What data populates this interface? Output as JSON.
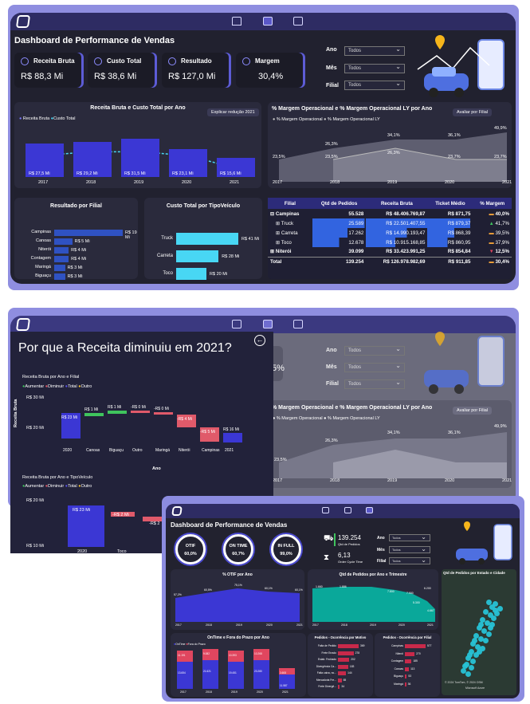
{
  "nav": {
    "items": [
      "home",
      "report",
      "briefcase"
    ]
  },
  "dash1": {
    "title": "Dashboard de Performance de Vendas",
    "kpis": [
      {
        "label": "Receita Bruta",
        "value": "R$ 88,3 Mi"
      },
      {
        "label": "Custo Total",
        "value": "R$ 38,6 Mi"
      },
      {
        "label": "Resultado",
        "value": "R$ 127,0 Mi"
      },
      {
        "label": "Margem",
        "value": "30,4%"
      }
    ],
    "filters": [
      {
        "label": "Ano",
        "value": "Todos"
      },
      {
        "label": "Mês",
        "value": "Todos"
      },
      {
        "label": "Filial",
        "value": "Todos"
      }
    ],
    "chart1": {
      "title": "Receita Bruta e Custo Total por Ano",
      "legend": [
        "Receita Bruta",
        "Custo Total"
      ],
      "button": "Explicar redução 2021",
      "years": [
        "2017",
        "2018",
        "2019",
        "2020",
        "2021"
      ],
      "labels": [
        "R$ 27,5 Mi",
        "R$ 29,2 Mi",
        "R$ 31,5 Mi",
        "R$ 23,1 Mi",
        "R$ 15,6 Mi"
      ],
      "values": [
        27.5,
        29.2,
        31.5,
        23.1,
        15.6
      ]
    },
    "chart2": {
      "title": "% Margem Operacional e % Margem Operacional LY por Ano",
      "legend": [
        "% Margem Operacional",
        "% Margem Operacional LY"
      ],
      "button": "Avaliar por Filial",
      "years": [
        "2017",
        "2018",
        "2019",
        "2020",
        "2021"
      ],
      "top": [
        "26,3%",
        "34,1%",
        "36,1%",
        "49,9%"
      ],
      "mid": [
        "23,5%",
        "23,5%",
        "26,3%",
        "23,7%",
        "23,7%"
      ]
    },
    "filial": {
      "title": "Resultado por Filial",
      "rows": [
        {
          "name": "Campinas",
          "value": "R$ 19 Mi",
          "v": 19
        },
        {
          "name": "Canoas",
          "value": "R$ 5 Mi",
          "v": 5
        },
        {
          "name": "Niterói",
          "value": "R$ 4 Mi",
          "v": 4
        },
        {
          "name": "Contagem",
          "value": "R$ 4 Mi",
          "v": 4
        },
        {
          "name": "Maringá",
          "value": "R$ 3 Mi",
          "v": 3
        },
        {
          "name": "Biguaçu",
          "value": "R$ 3 Mi",
          "v": 3
        }
      ]
    },
    "tipo": {
      "title": "Custo Total por TipoVeículo",
      "rows": [
        {
          "name": "Truck",
          "value": "R$ 41 Mi",
          "v": 41
        },
        {
          "name": "Carreta",
          "value": "R$ 28 Mi",
          "v": 28
        },
        {
          "name": "Toco",
          "value": "R$ 20 Mi",
          "v": 20
        }
      ]
    },
    "table": {
      "headers": [
        "Filial",
        "Qtd de Pedidos",
        "Receita Bruta",
        "Ticket Médio",
        "% Margem"
      ],
      "rows": [
        [
          "Campinas",
          "55.528",
          "R$ 48.406.769,87",
          "R$ 871,75",
          "40,0%"
        ],
        [
          "Truck",
          "25.589",
          "R$ 22.501.407,55",
          "R$ 879,37",
          "41,7%"
        ],
        [
          "Carreta",
          "17.262",
          "R$ 14.990.193,47",
          "R$ 868,39",
          "39,5%"
        ],
        [
          "Toco",
          "12.678",
          "R$ 10.915.168,85",
          "R$ 860,95",
          "37,9%"
        ],
        [
          "Niterói",
          "39.099",
          "R$ 33.423.991,25",
          "R$ 854,84",
          "12,5%"
        ],
        [
          "Total",
          "139.254",
          "R$ 126.978.982,69",
          "R$ 911,85",
          "30,4%"
        ]
      ]
    }
  },
  "dash2": {
    "title": "Por que a Receita diminuiu em 2021?",
    "kpi_fragment": "5%",
    "w1": {
      "title": "Receita Bruta por Ano e Filial",
      "legend": [
        "Aumentar",
        "Diminuir",
        "Total",
        "Outro"
      ],
      "ylabel": "Receita Bruta",
      "xlabel": "Ano",
      "yticks": [
        "R$ 30 Mi",
        "R$ 20 Mi"
      ],
      "cats": [
        "2020",
        "Canoas",
        "Biguaçu",
        "Outro",
        "Maringá",
        "Niterói",
        "Campinas",
        "2021"
      ],
      "labels": [
        "R$ 23 Mi",
        "R$ 1 Mi",
        "R$ 1 Mi",
        "-R$ 0 Mi",
        "-R$ 0 Mi",
        "-R$ 4 Mi",
        "-R$ 5 Mi",
        "R$ 16 Mi"
      ]
    },
    "w2": {
      "title": "Receita Bruta por Ano e TipoVeículo",
      "legend": [
        "Aumentar",
        "Diminuir",
        "Total",
        "Outro"
      ],
      "ylabel": "Receita Bruta",
      "yticks": [
        "R$ 20 Mi",
        "R$ 10 Mi"
      ],
      "cats": [
        "2020",
        "Toco"
      ],
      "labels": [
        "R$ 23 Mi",
        "-R$ 2 Mi",
        "-R$ 2"
      ]
    }
  },
  "dash3": {
    "title": "Dashboard de Performance de Vendas",
    "rings": [
      {
        "name": "OTIF",
        "value": "60,0%"
      },
      {
        "name": "ON TIME",
        "value": "60,7%"
      },
      {
        "name": "IN FULL",
        "value": "99,0%"
      }
    ],
    "orders": {
      "value": "139.254",
      "label": "Qtd de Pedidos"
    },
    "cycle": {
      "value": "6,13",
      "label": "Order Cycle Time"
    },
    "filters": [
      {
        "label": "Ano",
        "value": "Todos"
      },
      {
        "label": "Mês",
        "value": "Todos"
      },
      {
        "label": "Filial",
        "value": "Todos"
      }
    ],
    "otif": {
      "title": "% OTIF por Ano",
      "years": [
        "2017",
        "2018",
        "2019",
        "2020",
        "2021"
      ],
      "labels": [
        "57,2%",
        "60,5%",
        "75,1%",
        "60,1%",
        "60,1%"
      ]
    },
    "qtd": {
      "title": "Qtd de Pedidos por Ano e Trimestre",
      "years": [
        "2017",
        "2018",
        "2019",
        "2020",
        "2021"
      ],
      "labels": [
        "1.660",
        "1.886",
        "7.800",
        "7.900",
        "6.200",
        "5.300",
        "4.667"
      ]
    },
    "map": {
      "title": "Qtd de Pedidos por Estado e Cidade",
      "credit": "© 2024 TomTom, © 2024 OSM",
      "brand": "Microsoft Azure"
    },
    "ontime": {
      "title": "OnTime e Fora do Prazo por Ano",
      "legend": [
        "OnTime",
        "Fora do Prazo"
      ],
      "years": [
        "2017",
        "2018",
        "2019",
        "2020",
        "2021"
      ],
      "top": [
        "11.191",
        "9.082",
        "10.393",
        "10.268",
        "3.608"
      ],
      "bottom": [
        "13.654",
        "21.621",
        "19.451",
        "23.280",
        "11.587"
      ]
    },
    "motivo": {
      "title": "Pedidos - Ocorrência por Motivo",
      "rows": [
        {
          "name": "Falta de Pedido",
          "value": "369",
          "v": 369
        },
        {
          "name": "Frete Errado",
          "value": "278",
          "v": 278
        },
        {
          "name": "Estab. Fechado",
          "value": "202",
          "v": 202
        },
        {
          "name": "Divergência Ca...",
          "value": "183",
          "v": 183
        },
        {
          "name": "Falta caixa, no...",
          "value": "144",
          "v": 144
        },
        {
          "name": "Mercadoria Fre...",
          "value": "65",
          "v": 65
        },
        {
          "name": "Frete Divergê...",
          "value": "34",
          "v": 34
        }
      ]
    },
    "filial": {
      "title": "Pedidos - Ocorrência por Filial",
      "rows": [
        {
          "name": "Campinas",
          "value": "577",
          "v": 577
        },
        {
          "name": "Niterói",
          "value": "270",
          "v": 270
        },
        {
          "name": "Contagem",
          "value": "185",
          "v": 185
        },
        {
          "name": "Canoas",
          "value": "113",
          "v": 113
        },
        {
          "name": "Biguaçu",
          "value": "53",
          "v": 53
        },
        {
          "name": "Maringá",
          "value": "36",
          "v": 36
        }
      ]
    }
  }
}
